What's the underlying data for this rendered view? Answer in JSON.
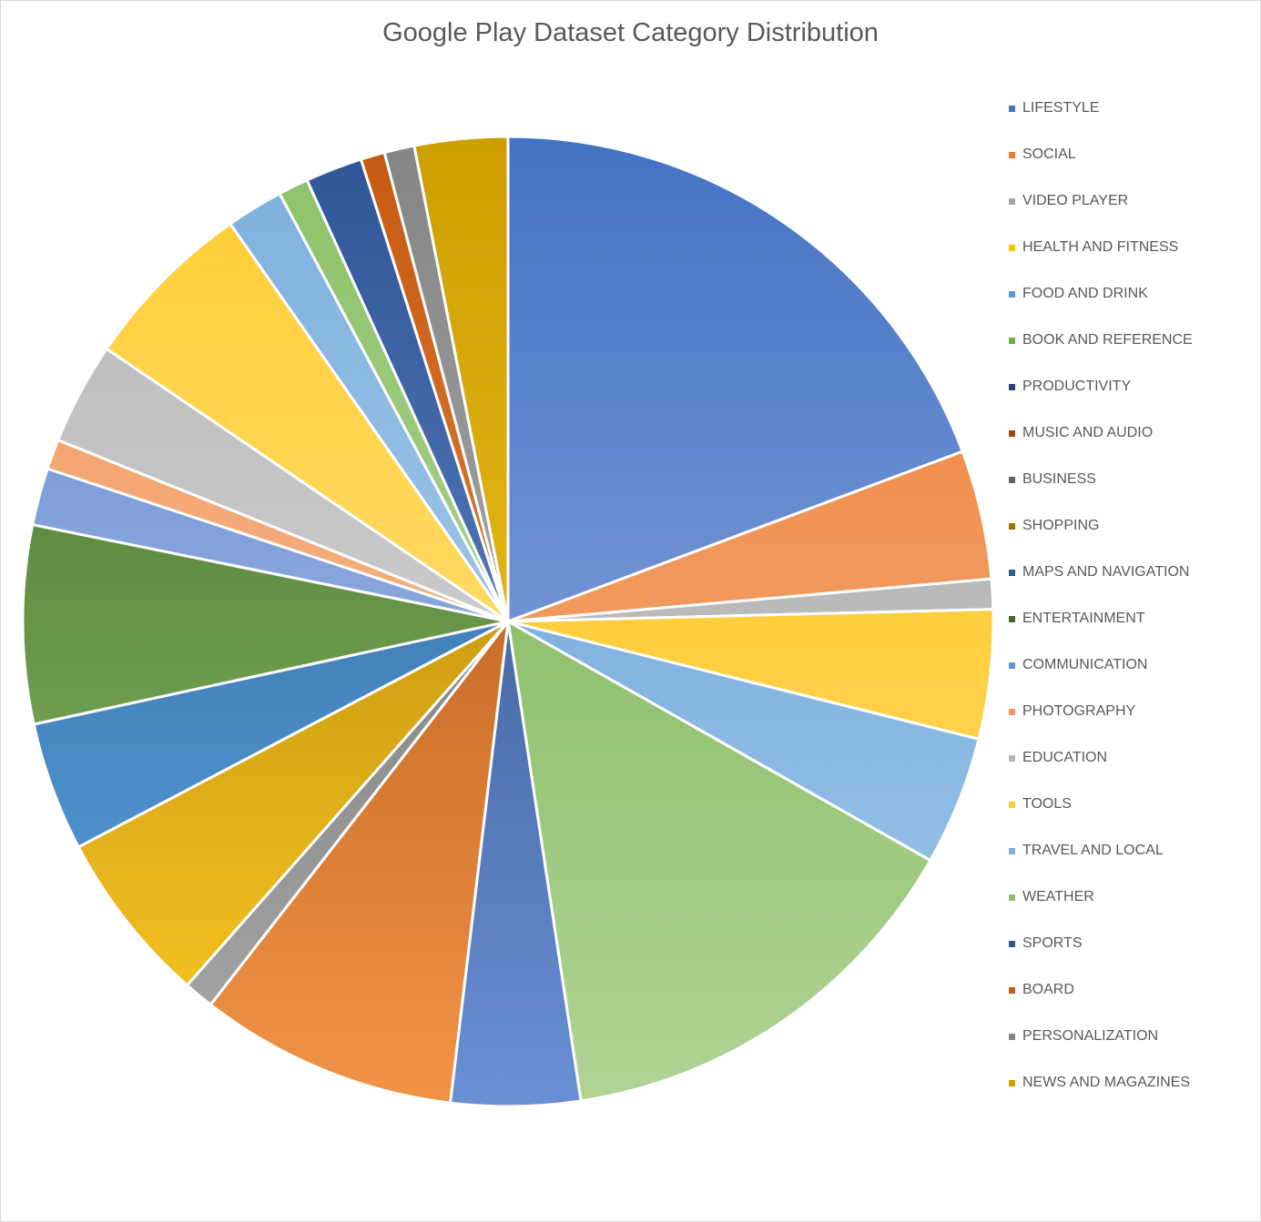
{
  "chart_data": {
    "type": "pie",
    "title": "Google Play Dataset Category Distribution",
    "legend_position": "right",
    "slices": [
      {
        "label": "LIFESTYLE",
        "value": 19.3,
        "color": "#4472c4",
        "light": "#9db4e2"
      },
      {
        "label": "SOCIAL",
        "value": 4.3,
        "color": "#ed7d31",
        "light": "#f5b78e"
      },
      {
        "label": "VIDEO PLAYER",
        "value": 1.0,
        "color": "#a5a5a5",
        "light": "#d0d0d0"
      },
      {
        "label": "HEALTH AND FITNESS",
        "value": 4.3,
        "color": "#ffc000",
        "light": "#ffdd7a"
      },
      {
        "label": "FOOD AND DRINK",
        "value": 4.3,
        "color": "#5b9bd5",
        "light": "#a6c9ea"
      },
      {
        "label": "BOOK AND REFERENCE",
        "value": 14.4,
        "color": "#70ad47",
        "light": "#b0d495"
      },
      {
        "label": "PRODUCTIVITY",
        "value": 4.3,
        "color": "#264478",
        "light": "#6a8fd4"
      },
      {
        "label": "MUSIC AND AUDIO",
        "value": 8.6,
        "color": "#9e480e",
        "light": "#f29346"
      },
      {
        "label": "BUSINESS",
        "value": 1.0,
        "color": "#636363",
        "light": "#a9a9a9"
      },
      {
        "label": "SHOPPING",
        "value": 5.8,
        "color": "#997300",
        "light": "#ffc925"
      },
      {
        "label": "MAPS AND NAVIGATION",
        "value": 4.3,
        "color": "#255e91",
        "light": "#5fa3e0"
      },
      {
        "label": "ENTERTAINMENT",
        "value": 6.6,
        "color": "#43682b",
        "light": "#8bc164"
      },
      {
        "label": "COMMUNICATION",
        "value": 1.9,
        "color": "#698ed0",
        "light": "#a9bee8"
      },
      {
        "label": "PHOTOGRAPHY",
        "value": 1.0,
        "color": "#f1975a",
        "light": "#f9c6a3"
      },
      {
        "label": "EDUCATION",
        "value": 3.4,
        "color": "#b7b7b7",
        "light": "#dcdcdc"
      },
      {
        "label": "TOOLS",
        "value": 5.8,
        "color": "#ffcd33",
        "light": "#ffe48f"
      },
      {
        "label": "TRAVEL AND LOCAL",
        "value": 1.9,
        "color": "#7cafdd",
        "light": "#bcd7ef"
      },
      {
        "label": "WEATHER",
        "value": 1.0,
        "color": "#8cc168",
        "light": "#bedca9"
      },
      {
        "label": "SPORTS",
        "value": 1.9,
        "color": "#2f5597",
        "light": "#7093d0"
      },
      {
        "label": "BOARD",
        "value": 0.8,
        "color": "#c55a11",
        "light": "#f0954f"
      },
      {
        "label": "PERSONALIZATION",
        "value": 1.0,
        "color": "#848484",
        "light": "#bdbdbd"
      },
      {
        "label": "NEWS AND MAGAZINES",
        "value": 3.1,
        "color": "#cc9e00",
        "light": "#f7ca2e"
      }
    ]
  }
}
